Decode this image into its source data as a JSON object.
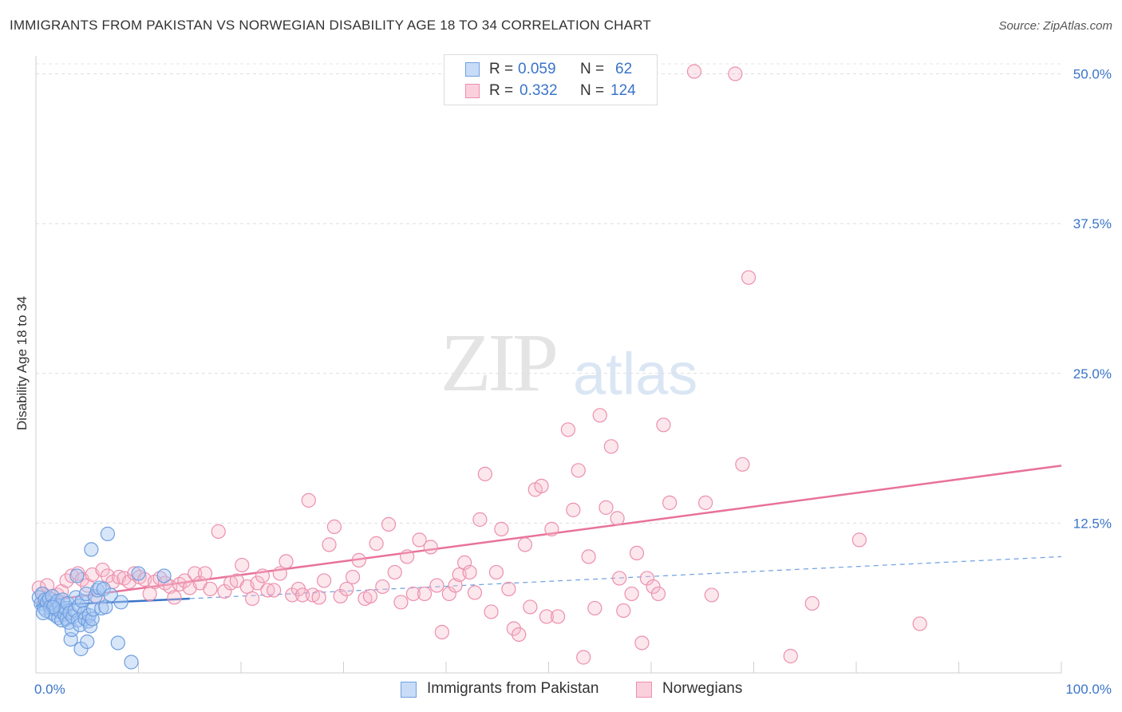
{
  "header": {
    "title": "IMMIGRANTS FROM PAKISTAN VS NORWEGIAN DISABILITY AGE 18 TO 34 CORRELATION CHART",
    "source": "Source: ZipAtlas.com"
  },
  "watermark": {
    "zip": "ZIP",
    "atlas": "atlas"
  },
  "legend": {
    "rows": [
      {
        "r_label": "R = ",
        "r_value": "0.059",
        "n_label": "N = ",
        "n_value": "62",
        "color": "#a9c8f2"
      },
      {
        "r_label": "R = ",
        "r_value": "0.332",
        "n_label": "N = ",
        "n_value": "124",
        "color": "#f7b9cc"
      }
    ]
  },
  "bottom_legend": {
    "items": [
      {
        "label": "Immigrants from Pakistan",
        "color": "#a9c8f2"
      },
      {
        "label": "Norwegians",
        "color": "#f7b9cc"
      }
    ]
  },
  "chart_data": {
    "type": "scatter",
    "title": "IMMIGRANTS FROM PAKISTAN VS NORWEGIAN DISABILITY AGE 18 TO 34 CORRELATION CHART",
    "xlabel": "",
    "ylabel": "Disability Age 18 to 34",
    "xlim": [
      0,
      100
    ],
    "ylim": [
      0,
      51.5
    ],
    "x_tick_labels": [
      "0.0%",
      "100.0%"
    ],
    "y_ticks": [
      12.5,
      25.0,
      37.5,
      50.0
    ],
    "y_tick_labels": [
      "12.5%",
      "25.0%",
      "37.5%",
      "50.0%"
    ],
    "grid": true,
    "legend_position": "top-center",
    "colors": {
      "pakistan": "#3a74c8",
      "pakistan_fill": "#a9c8f2",
      "norwegian": "#e8729a",
      "norwegian_fill": "#f7b9cc"
    },
    "series": [
      {
        "name": "Immigrants from Pakistan",
        "trend": {
          "x": [
            0,
            15
          ],
          "y": [
            5.6,
            6.2
          ],
          "dashed_to": [
            100,
            9.7
          ]
        },
        "points": [
          [
            0.3,
            6.3
          ],
          [
            0.5,
            5.8
          ],
          [
            0.6,
            6.6
          ],
          [
            0.8,
            5.4
          ],
          [
            0.9,
            6.1
          ],
          [
            1.0,
            5.2
          ],
          [
            1.1,
            5.9
          ],
          [
            1.3,
            6.2
          ],
          [
            1.4,
            5.5
          ],
          [
            1.5,
            5.0
          ],
          [
            1.6,
            6.4
          ],
          [
            1.8,
            5.7
          ],
          [
            1.9,
            4.8
          ],
          [
            2.0,
            5.3
          ],
          [
            2.1,
            6.0
          ],
          [
            2.2,
            4.6
          ],
          [
            2.3,
            5.6
          ],
          [
            2.4,
            5.1
          ],
          [
            2.5,
            4.4
          ],
          [
            2.6,
            6.1
          ],
          [
            2.8,
            4.9
          ],
          [
            2.9,
            5.4
          ],
          [
            3.0,
            4.5
          ],
          [
            3.1,
            5.8
          ],
          [
            3.2,
            4.2
          ],
          [
            3.3,
            5.0
          ],
          [
            3.4,
            2.8
          ],
          [
            3.5,
            3.6
          ],
          [
            3.6,
            4.7
          ],
          [
            3.8,
            5.2
          ],
          [
            3.9,
            6.3
          ],
          [
            4.0,
            8.1
          ],
          [
            4.1,
            4.4
          ],
          [
            4.2,
            5.6
          ],
          [
            4.3,
            4.0
          ],
          [
            4.4,
            2.0
          ],
          [
            4.5,
            6.0
          ],
          [
            4.7,
            5.0
          ],
          [
            4.8,
            4.5
          ],
          [
            4.9,
            6.6
          ],
          [
            5.0,
            2.6
          ],
          [
            5.1,
            4.3
          ],
          [
            5.2,
            4.8
          ],
          [
            5.3,
            3.9
          ],
          [
            5.4,
            10.3
          ],
          [
            5.5,
            4.5
          ],
          [
            5.6,
            5.3
          ],
          [
            5.8,
            6.4
          ],
          [
            6.0,
            6.9
          ],
          [
            6.2,
            7.1
          ],
          [
            6.4,
            5.4
          ],
          [
            6.6,
            7.0
          ],
          [
            6.8,
            5.5
          ],
          [
            7.0,
            11.6
          ],
          [
            7.3,
            6.5
          ],
          [
            8.0,
            2.5
          ],
          [
            8.3,
            5.9
          ],
          [
            9.3,
            0.9
          ],
          [
            10.0,
            8.3
          ],
          [
            12.5,
            8.1
          ],
          [
            1.7,
            5.5
          ],
          [
            0.7,
            5.0
          ]
        ]
      },
      {
        "name": "Norwegians",
        "trend": {
          "x": [
            0,
            100
          ],
          "y": [
            5.9,
            17.3
          ]
        },
        "points": [
          [
            0.3,
            7.1
          ],
          [
            0.7,
            6.6
          ],
          [
            1.1,
            7.3
          ],
          [
            1.5,
            5.6
          ],
          [
            2.1,
            6.5
          ],
          [
            2.5,
            6.8
          ],
          [
            3.0,
            7.7
          ],
          [
            3.5,
            8.1
          ],
          [
            4.1,
            8.3
          ],
          [
            4.5,
            7.8
          ],
          [
            5.0,
            7.3
          ],
          [
            5.5,
            8.2
          ],
          [
            6.0,
            6.3
          ],
          [
            6.5,
            8.6
          ],
          [
            7.0,
            8.1
          ],
          [
            7.5,
            7.6
          ],
          [
            8.1,
            8.0
          ],
          [
            8.6,
            7.9
          ],
          [
            9.1,
            7.6
          ],
          [
            9.6,
            8.3
          ],
          [
            10.1,
            8.0
          ],
          [
            10.6,
            7.8
          ],
          [
            11.1,
            6.6
          ],
          [
            11.6,
            7.6
          ],
          [
            12.1,
            7.9
          ],
          [
            12.6,
            7.5
          ],
          [
            13.1,
            7.2
          ],
          [
            13.5,
            6.3
          ],
          [
            14.0,
            7.4
          ],
          [
            14.5,
            7.7
          ],
          [
            15.0,
            7.1
          ],
          [
            15.5,
            8.3
          ],
          [
            16.0,
            7.5
          ],
          [
            16.5,
            8.3
          ],
          [
            17.0,
            7.0
          ],
          [
            17.8,
            11.8
          ],
          [
            18.4,
            6.8
          ],
          [
            19.0,
            7.5
          ],
          [
            19.6,
            7.7
          ],
          [
            20.1,
            9.0
          ],
          [
            20.6,
            7.2
          ],
          [
            21.1,
            6.2
          ],
          [
            21.6,
            7.5
          ],
          [
            22.1,
            8.1
          ],
          [
            22.6,
            6.9
          ],
          [
            23.2,
            6.9
          ],
          [
            23.8,
            8.3
          ],
          [
            24.4,
            9.3
          ],
          [
            25.0,
            6.5
          ],
          [
            25.6,
            7.0
          ],
          [
            26.0,
            6.5
          ],
          [
            26.6,
            14.4
          ],
          [
            27.0,
            6.5
          ],
          [
            27.6,
            6.3
          ],
          [
            28.1,
            7.7
          ],
          [
            28.6,
            10.7
          ],
          [
            29.1,
            12.2
          ],
          [
            29.7,
            6.4
          ],
          [
            30.3,
            7.0
          ],
          [
            30.9,
            8.0
          ],
          [
            31.5,
            9.4
          ],
          [
            32.1,
            6.2
          ],
          [
            32.6,
            6.4
          ],
          [
            33.2,
            10.8
          ],
          [
            33.8,
            7.2
          ],
          [
            34.4,
            12.4
          ],
          [
            35.0,
            8.4
          ],
          [
            35.6,
            5.9
          ],
          [
            36.2,
            9.7
          ],
          [
            36.8,
            6.6
          ],
          [
            37.4,
            11.1
          ],
          [
            37.9,
            6.6
          ],
          [
            38.5,
            10.5
          ],
          [
            39.1,
            7.3
          ],
          [
            39.6,
            3.4
          ],
          [
            40.3,
            6.6
          ],
          [
            40.9,
            7.3
          ],
          [
            41.3,
            8.2
          ],
          [
            41.8,
            9.2
          ],
          [
            42.3,
            8.4
          ],
          [
            42.8,
            6.7
          ],
          [
            43.3,
            12.8
          ],
          [
            43.8,
            16.6
          ],
          [
            44.4,
            5.1
          ],
          [
            44.9,
            8.4
          ],
          [
            45.4,
            12.0
          ],
          [
            46.1,
            7.0
          ],
          [
            46.6,
            3.7
          ],
          [
            47.1,
            3.2
          ],
          [
            47.7,
            10.7
          ],
          [
            48.2,
            5.5
          ],
          [
            48.7,
            15.3
          ],
          [
            49.3,
            15.6
          ],
          [
            49.8,
            4.7
          ],
          [
            50.3,
            12.0
          ],
          [
            50.9,
            4.7
          ],
          [
            51.9,
            20.3
          ],
          [
            52.4,
            13.6
          ],
          [
            52.9,
            16.9
          ],
          [
            53.4,
            1.3
          ],
          [
            53.9,
            9.7
          ],
          [
            54.5,
            5.4
          ],
          [
            55.0,
            21.5
          ],
          [
            55.6,
            13.8
          ],
          [
            56.1,
            18.9
          ],
          [
            56.7,
            12.9
          ],
          [
            56.9,
            7.9
          ],
          [
            57.3,
            5.2
          ],
          [
            58.1,
            6.6
          ],
          [
            58.6,
            10.0
          ],
          [
            59.1,
            2.5
          ],
          [
            59.6,
            7.9
          ],
          [
            60.2,
            7.2
          ],
          [
            60.7,
            6.6
          ],
          [
            61.2,
            20.7
          ],
          [
            61.8,
            14.2
          ],
          [
            64.2,
            50.2
          ],
          [
            65.3,
            14.2
          ],
          [
            65.9,
            6.5
          ],
          [
            68.2,
            50.0
          ],
          [
            68.9,
            17.4
          ],
          [
            69.5,
            33.0
          ],
          [
            73.6,
            1.4
          ],
          [
            75.7,
            5.8
          ],
          [
            80.3,
            11.1
          ],
          [
            86.2,
            4.1
          ]
        ]
      }
    ]
  }
}
